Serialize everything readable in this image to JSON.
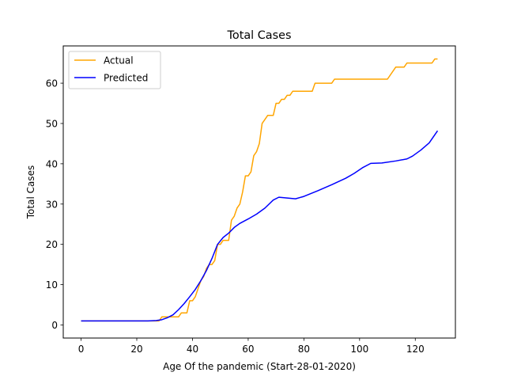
{
  "chart_data": {
    "type": "line",
    "title": "Total Cases",
    "xlabel": "Age Of the pandemic (Start-28-01-2020)",
    "ylabel": "Total Cases",
    "xlim": [
      -6.4,
      134.4
    ],
    "ylim": [
      -3.25,
      69.25
    ],
    "xticks": [
      0,
      20,
      40,
      60,
      80,
      100,
      120
    ],
    "yticks": [
      0,
      10,
      20,
      30,
      40,
      50,
      60
    ],
    "grid": false,
    "legend_position": "upper-left",
    "series": [
      {
        "name": "Actual",
        "color": "#ffa500",
        "points": [
          [
            0,
            1
          ],
          [
            28,
            1
          ],
          [
            29,
            2
          ],
          [
            32,
            2
          ],
          [
            33,
            2
          ],
          [
            35,
            2
          ],
          [
            36,
            3
          ],
          [
            38,
            3
          ],
          [
            39,
            6
          ],
          [
            40,
            6
          ],
          [
            41,
            7
          ],
          [
            42,
            9
          ],
          [
            43,
            11
          ],
          [
            44,
            12
          ],
          [
            45,
            14
          ],
          [
            46,
            15
          ],
          [
            47,
            15
          ],
          [
            48,
            16
          ],
          [
            49,
            20
          ],
          [
            50,
            20
          ],
          [
            51,
            21
          ],
          [
            53,
            21
          ],
          [
            54,
            26
          ],
          [
            55,
            27
          ],
          [
            56,
            29
          ],
          [
            57,
            30
          ],
          [
            58,
            33
          ],
          [
            59,
            37
          ],
          [
            60,
            37
          ],
          [
            61,
            38
          ],
          [
            62,
            42
          ],
          [
            63,
            43
          ],
          [
            64,
            45
          ],
          [
            65,
            50
          ],
          [
            66,
            51
          ],
          [
            67,
            52
          ],
          [
            69,
            52
          ],
          [
            70,
            55
          ],
          [
            71,
            55
          ],
          [
            72,
            56
          ],
          [
            73,
            56
          ],
          [
            74,
            57
          ],
          [
            75,
            57
          ],
          [
            76,
            58
          ],
          [
            83,
            58
          ],
          [
            84,
            60
          ],
          [
            90,
            60
          ],
          [
            91,
            61
          ],
          [
            110,
            61
          ],
          [
            113,
            64
          ],
          [
            116,
            64
          ],
          [
            117,
            65
          ],
          [
            126,
            65
          ],
          [
            127,
            66
          ],
          [
            128,
            66
          ]
        ]
      },
      {
        "name": "Predicted",
        "color": "#0000ff",
        "points": [
          [
            0,
            1
          ],
          [
            20,
            1
          ],
          [
            24,
            1
          ],
          [
            27,
            1.1
          ],
          [
            29,
            1.3
          ],
          [
            31,
            1.8
          ],
          [
            33,
            2.5
          ],
          [
            35,
            3.8
          ],
          [
            37,
            5.3
          ],
          [
            39,
            7
          ],
          [
            41,
            8.8
          ],
          [
            43,
            11
          ],
          [
            45,
            13.5
          ],
          [
            47,
            16.5
          ],
          [
            49,
            20
          ],
          [
            51,
            21.7
          ],
          [
            53,
            22.8
          ],
          [
            55,
            24.2
          ],
          [
            57,
            25.2
          ],
          [
            60,
            26.3
          ],
          [
            63,
            27.5
          ],
          [
            66,
            29
          ],
          [
            69,
            31
          ],
          [
            71,
            31.7
          ],
          [
            74,
            31.5
          ],
          [
            77,
            31.3
          ],
          [
            80,
            31.9
          ],
          [
            85,
            33.3
          ],
          [
            90,
            34.8
          ],
          [
            95,
            36.4
          ],
          [
            98,
            37.6
          ],
          [
            101,
            39
          ],
          [
            104,
            40.1
          ],
          [
            108,
            40.2
          ],
          [
            113,
            40.7
          ],
          [
            117,
            41.2
          ],
          [
            119,
            41.9
          ],
          [
            122,
            43.4
          ],
          [
            125,
            45.2
          ],
          [
            128,
            48.2
          ]
        ]
      }
    ]
  }
}
